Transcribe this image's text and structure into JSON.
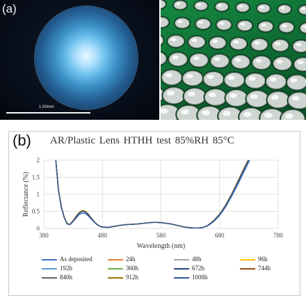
{
  "panel_a": {
    "label": "(a)",
    "scale_bar_text": "1.00mm"
  },
  "panel_b": {
    "label": "(b)"
  },
  "chart_data": {
    "type": "line",
    "title": "AR/Plastic  Lens  HTHH test 85%RH 85°C",
    "xlabel": "Wavelength (nm)",
    "ylabel": "Reflectance (%)",
    "xlim": [
      380,
      780
    ],
    "ylim": [
      0,
      2
    ],
    "xticks": [
      380,
      480,
      580,
      680,
      780
    ],
    "yticks": [
      0,
      0.5,
      1,
      1.5,
      2
    ],
    "ytick_labels": [
      "0",
      "0.5",
      "1",
      "1.5",
      "2"
    ],
    "grid": true,
    "legend_position": "bottom",
    "x": [
      400,
      405,
      410,
      415,
      420,
      425,
      430,
      435,
      440,
      445,
      450,
      455,
      460,
      465,
      470,
      475,
      480,
      490,
      500,
      510,
      520,
      530,
      540,
      550,
      560,
      570,
      580,
      590,
      600,
      610,
      620,
      630,
      640,
      650,
      660,
      670,
      680,
      690,
      700,
      710,
      720,
      730,
      740
    ],
    "series": [
      {
        "name": "As deposited",
        "color": "#4472c4",
        "values": [
          2.1,
          1.1,
          0.6,
          0.3,
          0.13,
          0.11,
          0.2,
          0.3,
          0.4,
          0.45,
          0.44,
          0.38,
          0.29,
          0.2,
          0.12,
          0.07,
          0.04,
          0.03,
          0.06,
          0.09,
          0.11,
          0.12,
          0.13,
          0.15,
          0.17,
          0.18,
          0.17,
          0.15,
          0.12,
          0.08,
          0.04,
          0.02,
          0.01,
          0.02,
          0.08,
          0.2,
          0.38,
          0.62,
          0.92,
          1.25,
          1.6,
          1.95,
          2.3
        ]
      },
      {
        "name": "24h",
        "color": "#ed7d31",
        "values": [
          2.1,
          1.12,
          0.62,
          0.31,
          0.13,
          0.12,
          0.22,
          0.33,
          0.44,
          0.5,
          0.49,
          0.42,
          0.32,
          0.21,
          0.13,
          0.07,
          0.04,
          0.03,
          0.06,
          0.09,
          0.11,
          0.12,
          0.13,
          0.15,
          0.17,
          0.18,
          0.17,
          0.15,
          0.12,
          0.08,
          0.04,
          0.02,
          0.01,
          0.02,
          0.09,
          0.22,
          0.41,
          0.66,
          0.97,
          1.31,
          1.67,
          2.02,
          2.35
        ]
      },
      {
        "name": "48h",
        "color": "#a5a5a5",
        "values": [
          2.1,
          1.12,
          0.62,
          0.31,
          0.13,
          0.12,
          0.22,
          0.33,
          0.44,
          0.5,
          0.49,
          0.42,
          0.32,
          0.21,
          0.13,
          0.07,
          0.04,
          0.03,
          0.06,
          0.09,
          0.11,
          0.12,
          0.13,
          0.15,
          0.17,
          0.18,
          0.17,
          0.15,
          0.12,
          0.08,
          0.04,
          0.02,
          0.01,
          0.02,
          0.09,
          0.22,
          0.41,
          0.66,
          0.97,
          1.31,
          1.67,
          2.02,
          2.35
        ]
      },
      {
        "name": "96h",
        "color": "#ffc000",
        "values": [
          2.1,
          1.13,
          0.63,
          0.32,
          0.14,
          0.12,
          0.23,
          0.35,
          0.46,
          0.52,
          0.51,
          0.44,
          0.33,
          0.22,
          0.13,
          0.07,
          0.04,
          0.03,
          0.06,
          0.09,
          0.11,
          0.12,
          0.13,
          0.15,
          0.17,
          0.18,
          0.17,
          0.15,
          0.12,
          0.08,
          0.04,
          0.02,
          0.01,
          0.02,
          0.09,
          0.23,
          0.42,
          0.68,
          0.99,
          1.34,
          1.7,
          2.05,
          2.38
        ]
      },
      {
        "name": "192h",
        "color": "#5b9bd5",
        "values": [
          2.1,
          1.12,
          0.62,
          0.31,
          0.13,
          0.12,
          0.22,
          0.33,
          0.44,
          0.5,
          0.49,
          0.42,
          0.32,
          0.21,
          0.13,
          0.07,
          0.04,
          0.03,
          0.06,
          0.09,
          0.11,
          0.12,
          0.13,
          0.15,
          0.17,
          0.18,
          0.17,
          0.15,
          0.12,
          0.08,
          0.04,
          0.02,
          0.01,
          0.02,
          0.09,
          0.22,
          0.41,
          0.66,
          0.97,
          1.31,
          1.67,
          2.02,
          2.35
        ]
      },
      {
        "name": "360h",
        "color": "#70ad47",
        "values": [
          2.1,
          1.12,
          0.62,
          0.31,
          0.13,
          0.12,
          0.22,
          0.33,
          0.44,
          0.5,
          0.49,
          0.42,
          0.32,
          0.21,
          0.13,
          0.07,
          0.04,
          0.03,
          0.06,
          0.09,
          0.11,
          0.12,
          0.13,
          0.15,
          0.17,
          0.18,
          0.17,
          0.15,
          0.12,
          0.08,
          0.04,
          0.02,
          0.01,
          0.02,
          0.09,
          0.22,
          0.41,
          0.66,
          0.97,
          1.31,
          1.67,
          2.02,
          2.35
        ]
      },
      {
        "name": "672h",
        "color": "#264478",
        "values": [
          2.1,
          1.12,
          0.62,
          0.31,
          0.13,
          0.12,
          0.22,
          0.33,
          0.44,
          0.5,
          0.49,
          0.42,
          0.32,
          0.21,
          0.13,
          0.07,
          0.04,
          0.03,
          0.06,
          0.09,
          0.11,
          0.12,
          0.13,
          0.15,
          0.17,
          0.18,
          0.17,
          0.15,
          0.12,
          0.08,
          0.04,
          0.02,
          0.01,
          0.02,
          0.09,
          0.22,
          0.41,
          0.66,
          0.97,
          1.31,
          1.67,
          2.02,
          2.35
        ]
      },
      {
        "name": "744h",
        "color": "#9e480e",
        "values": [
          2.1,
          1.13,
          0.63,
          0.32,
          0.14,
          0.12,
          0.23,
          0.35,
          0.46,
          0.52,
          0.51,
          0.44,
          0.33,
          0.22,
          0.13,
          0.07,
          0.04,
          0.03,
          0.06,
          0.09,
          0.11,
          0.12,
          0.13,
          0.15,
          0.17,
          0.18,
          0.17,
          0.15,
          0.12,
          0.08,
          0.04,
          0.02,
          0.01,
          0.02,
          0.09,
          0.23,
          0.42,
          0.68,
          0.99,
          1.34,
          1.7,
          2.05,
          2.38
        ]
      },
      {
        "name": "840h",
        "color": "#636363",
        "values": [
          2.1,
          1.12,
          0.62,
          0.31,
          0.13,
          0.12,
          0.22,
          0.33,
          0.44,
          0.5,
          0.49,
          0.42,
          0.32,
          0.21,
          0.13,
          0.07,
          0.04,
          0.03,
          0.06,
          0.09,
          0.11,
          0.12,
          0.13,
          0.15,
          0.17,
          0.18,
          0.17,
          0.15,
          0.12,
          0.08,
          0.04,
          0.02,
          0.01,
          0.02,
          0.09,
          0.22,
          0.41,
          0.66,
          0.97,
          1.31,
          1.67,
          2.02,
          2.35
        ]
      },
      {
        "name": "912h",
        "color": "#997300",
        "values": [
          2.1,
          1.13,
          0.63,
          0.32,
          0.14,
          0.12,
          0.23,
          0.35,
          0.46,
          0.52,
          0.51,
          0.44,
          0.33,
          0.22,
          0.13,
          0.07,
          0.04,
          0.03,
          0.06,
          0.09,
          0.11,
          0.12,
          0.13,
          0.15,
          0.17,
          0.18,
          0.17,
          0.15,
          0.12,
          0.08,
          0.04,
          0.02,
          0.01,
          0.02,
          0.09,
          0.23,
          0.42,
          0.68,
          0.99,
          1.34,
          1.7,
          2.05,
          2.38
        ]
      },
      {
        "name": "1008h",
        "color": "#2f5597",
        "values": [
          2.1,
          1.12,
          0.62,
          0.31,
          0.13,
          0.12,
          0.22,
          0.33,
          0.44,
          0.5,
          0.49,
          0.42,
          0.32,
          0.21,
          0.13,
          0.07,
          0.04,
          0.03,
          0.06,
          0.09,
          0.11,
          0.12,
          0.13,
          0.15,
          0.17,
          0.18,
          0.17,
          0.15,
          0.12,
          0.08,
          0.04,
          0.02,
          0.01,
          0.02,
          0.09,
          0.22,
          0.41,
          0.66,
          0.97,
          1.31,
          1.67,
          2.02,
          2.35
        ]
      }
    ]
  }
}
